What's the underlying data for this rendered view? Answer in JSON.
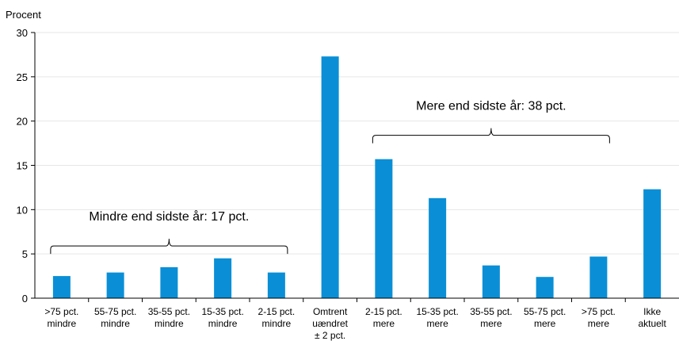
{
  "chart_data": {
    "type": "bar",
    "ylabel": "Procent",
    "ylim": [
      0,
      30
    ],
    "yticks": [
      "0",
      "5",
      "10",
      "15",
      "20",
      "25",
      "30"
    ],
    "grid": true,
    "bar_color": "#0a8fd6",
    "categories": [
      ">75 pct. mindre",
      "55-75 pct. mindre",
      "35-55 pct. mindre",
      "15-35 pct. mindre",
      "2-15 pct. mindre",
      "Omtrent uændret ± 2 pct.",
      "2-15 pct. mere",
      "15-35 pct. mere",
      "35-55 pct. mere",
      "55-75 pct. mere",
      ">75 pct. mere",
      "Ikke aktuelt"
    ],
    "category_lines": [
      [
        ">75 pct.",
        "mindre"
      ],
      [
        "55-75 pct.",
        "mindre"
      ],
      [
        "35-55 pct.",
        "mindre"
      ],
      [
        "15-35 pct.",
        "mindre"
      ],
      [
        "2-15 pct.",
        "mindre"
      ],
      [
        "Omtrent",
        "uændret",
        "± 2 pct."
      ],
      [
        "2-15 pct.",
        "mere"
      ],
      [
        "15-35 pct.",
        "mere"
      ],
      [
        "35-55 pct.",
        "mere"
      ],
      [
        "55-75 pct.",
        "mere"
      ],
      [
        ">75 pct.",
        "mere"
      ],
      [
        "Ikke",
        "aktuelt"
      ]
    ],
    "values": [
      2.5,
      2.9,
      3.5,
      4.5,
      2.9,
      27.3,
      15.7,
      11.3,
      3.7,
      2.4,
      4.7,
      12.3
    ],
    "annotations": [
      {
        "text": "Mindre end sidste år: 17 pct.",
        "from_index": 0,
        "to_index": 4,
        "bracket_value": 5.0,
        "text_value": 9.3
      },
      {
        "text": "Mere end sidste år: 38 pct.",
        "from_index": 6,
        "to_index": 10,
        "bracket_value": 17.5,
        "text_value": 21.8
      }
    ]
  }
}
